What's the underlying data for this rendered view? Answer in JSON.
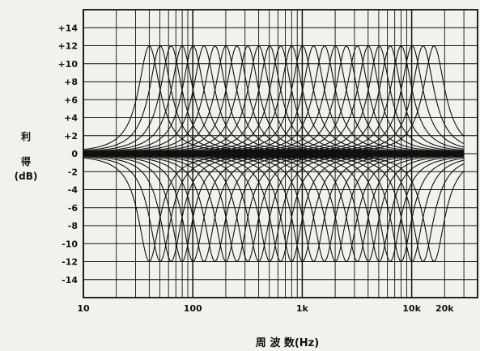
{
  "chart_data": {
    "type": "line",
    "title": "",
    "ylabel_lines": [
      "利",
      "得",
      "(dB)"
    ],
    "xlabel": "周 波 数(Hz)",
    "x_scale": "log",
    "xlim": [
      10,
      40000
    ],
    "ylim": [
      -16,
      16
    ],
    "grid": true,
    "y_ticks": [
      {
        "value": 14,
        "label": "+14"
      },
      {
        "value": 12,
        "label": "+12"
      },
      {
        "value": 10,
        "label": "+10"
      },
      {
        "value": 8,
        "label": "+8"
      },
      {
        "value": 6,
        "label": "+6"
      },
      {
        "value": 4,
        "label": "+4"
      },
      {
        "value": 2,
        "label": "+2"
      },
      {
        "value": 0,
        "label": "0"
      },
      {
        "value": -2,
        "label": "-2"
      },
      {
        "value": -4,
        "label": "-4"
      },
      {
        "value": -6,
        "label": "-6"
      },
      {
        "value": -8,
        "label": "-8"
      },
      {
        "value": -10,
        "label": "-10"
      },
      {
        "value": -12,
        "label": "-12"
      },
      {
        "value": -14,
        "label": "-14"
      }
    ],
    "x_ticks": [
      {
        "value": 10,
        "label": "10"
      },
      {
        "value": 100,
        "label": "100"
      },
      {
        "value": 1000,
        "label": "1k"
      },
      {
        "value": 10000,
        "label": "10k"
      },
      {
        "value": 20000,
        "label": "20k"
      }
    ],
    "band_count": 27,
    "band_center_range_hz": [
      40,
      16000
    ],
    "band_gain_db": 12,
    "series_colors": [
      "#111111"
    ]
  }
}
